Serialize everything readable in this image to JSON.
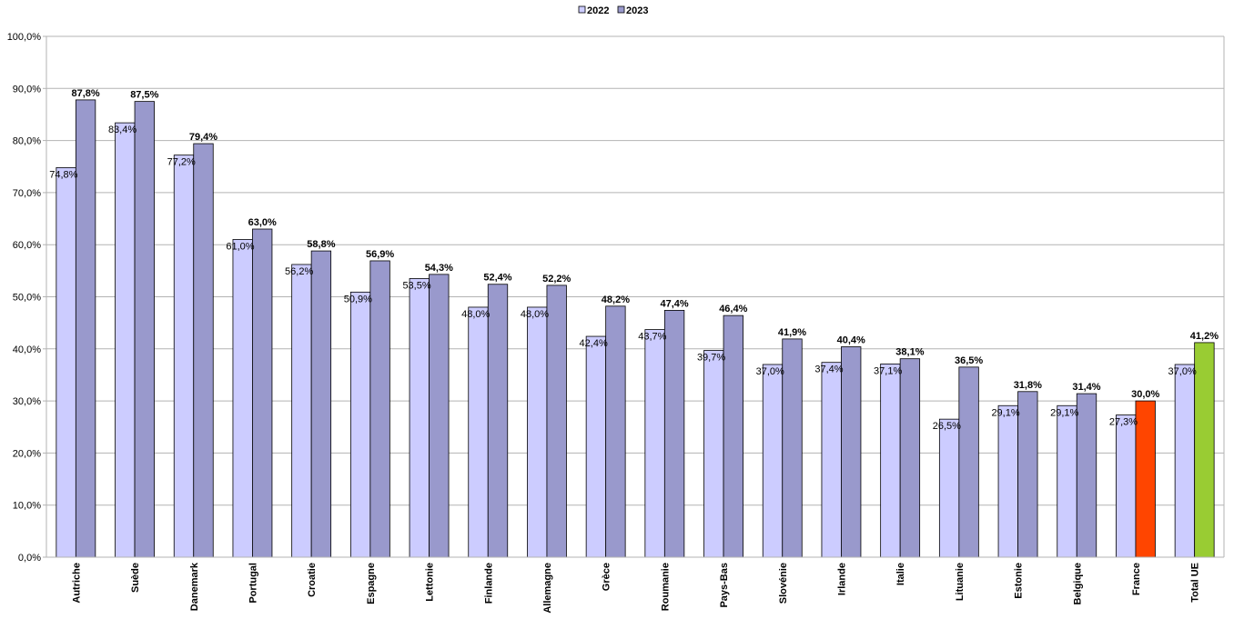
{
  "chart_data": {
    "type": "bar",
    "title": "",
    "xlabel": "",
    "ylabel": "",
    "ylim": [
      0,
      100
    ],
    "ytick_step": 10,
    "ytick_labels": [
      "0,0%",
      "10,0%",
      "20,0%",
      "30,0%",
      "40,0%",
      "50,0%",
      "60,0%",
      "70,0%",
      "80,0%",
      "90,0%",
      "100,0%"
    ],
    "grid": true,
    "legend_position": "top-center",
    "categories": [
      "Autriche",
      "Suède",
      "Danemark",
      "Portugal",
      "Croatie",
      "Espagne",
      "Lettonie",
      "Finlande",
      "Allemagne",
      "Grèce",
      "Roumanie",
      "Pays-Bas",
      "Slovénie",
      "Irlande",
      "Italie",
      "Lituanie",
      "Estonie",
      "Belgique",
      "France",
      "Total UE"
    ],
    "series": [
      {
        "name": "2022",
        "color": "#ccccff",
        "values": [
          74.8,
          83.4,
          77.2,
          61.0,
          56.2,
          50.9,
          53.5,
          48.0,
          48.0,
          42.4,
          43.7,
          39.7,
          37.0,
          37.4,
          37.1,
          26.5,
          29.1,
          29.1,
          27.3,
          37.0
        ],
        "labels": [
          "74,8%",
          "83,4%",
          "77,2%",
          "61,0%",
          "56,2%",
          "50,9%",
          "53,5%",
          "48,0%",
          "48,0%",
          "42,4%",
          "43,7%",
          "39,7%",
          "37,0%",
          "37,4%",
          "37,1%",
          "26,5%",
          "29,1%",
          "29,1%",
          "27,3%",
          "37,0%"
        ]
      },
      {
        "name": "2023",
        "color": "#9999cc",
        "values": [
          87.8,
          87.5,
          79.4,
          63.0,
          58.8,
          56.9,
          54.3,
          52.4,
          52.2,
          48.2,
          47.4,
          46.4,
          41.9,
          40.4,
          38.1,
          36.5,
          31.8,
          31.4,
          30.0,
          41.2
        ],
        "labels": [
          "87,8%",
          "87,5%",
          "79,4%",
          "63,0%",
          "58,8%",
          "56,9%",
          "54,3%",
          "52,4%",
          "52,2%",
          "48,2%",
          "47,4%",
          "46,4%",
          "41,9%",
          "40,4%",
          "38,1%",
          "36,5%",
          "31,8%",
          "31,4%",
          "30,0%",
          "41,2%"
        ],
        "highlight_colors": {
          "France": "#ff4500",
          "Total UE": "#99cc33"
        }
      }
    ]
  }
}
